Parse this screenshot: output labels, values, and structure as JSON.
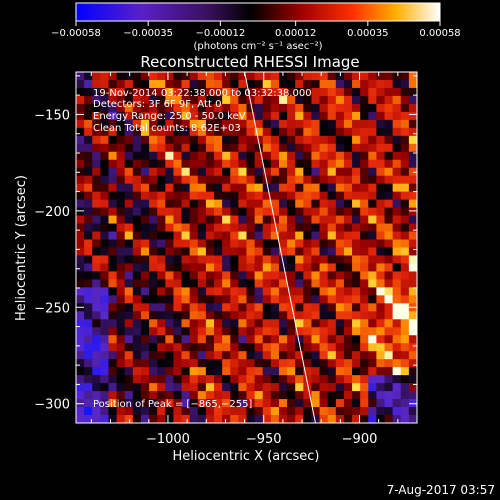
{
  "chart_data": {
    "type": "heatmap",
    "title": "Reconstructed RHESSI Image",
    "xlabel": "Heliocentric X (arcsec)",
    "ylabel": "Heliocentric Y (arcsec)",
    "xlim": [
      -1048,
      -870
    ],
    "ylim": [
      -310,
      -128
    ],
    "x_ticks": [
      -1000,
      -950,
      -900
    ],
    "x_tick_labels": [
      "−1000",
      "−950",
      "−900"
    ],
    "y_ticks": [
      -300,
      -250,
      -200,
      -150
    ],
    "y_tick_labels": [
      "−300",
      "−250",
      "−200",
      "−150"
    ],
    "colorbar": {
      "range": [
        -0.00058,
        0.00058
      ],
      "ticks": [
        -0.00058,
        -0.00035,
        -0.00012,
        0.00012,
        0.00035,
        0.00058
      ],
      "tick_labels": [
        "−0.00058",
        "−0.00035",
        "−0.00012",
        "0.00012",
        "0.00035",
        "0.00058"
      ],
      "label": "(photons cm⁻² s⁻¹ asec⁻²)",
      "colormap": "blue-purple-black-red-orange-yellow-white"
    },
    "annotations": {
      "time_range": "19-Nov-2014 03:22:38.000 to 03:32:38.000",
      "detectors": "Detectors: 3F 6F 9F, Att 0",
      "energy": "Energy Range: 25.0 - 50.0 keV",
      "clean": "Clean      Total counts: 8.62E+03",
      "peak": "Position of Peak = [−865,−255]"
    },
    "limb_line": {
      "x": [
        -960,
        -923
      ],
      "y": [
        -128,
        -310
      ]
    },
    "peak_position": [
      -865,
      -255
    ]
  },
  "footer": {
    "date": "7-Aug-2017 03:57"
  },
  "colors": {
    "background": "#000000",
    "foreground": "#ffffff",
    "cmap_low": "#0000ff",
    "cmap_mid": "#000000",
    "cmap_red": "#d01010",
    "cmap_high": "#ffffff"
  }
}
